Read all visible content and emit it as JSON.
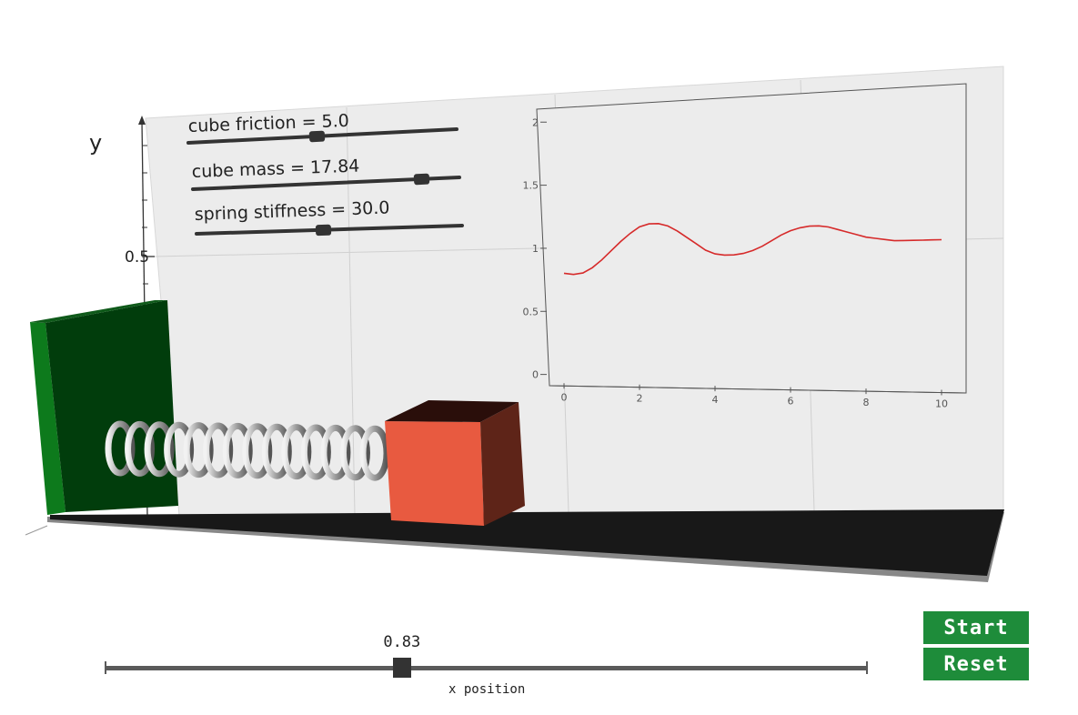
{
  "sliders": {
    "friction": {
      "label": "cube friction = 5.0",
      "value": 5.0
    },
    "mass": {
      "label": "cube mass = 17.84",
      "value": 17.84
    },
    "stiffness": {
      "label": "spring stiffness = 30.0",
      "value": 30.0
    }
  },
  "axis": {
    "y_label": "y",
    "y_tick": "0.5"
  },
  "chart_data": {
    "type": "line",
    "x": [
      0,
      0.25,
      0.5,
      0.75,
      1,
      1.25,
      1.5,
      1.75,
      2,
      2.25,
      2.5,
      2.75,
      3,
      3.25,
      3.5,
      3.75,
      4,
      4.25,
      4.5,
      4.75,
      5,
      5.25,
      5.5,
      5.75,
      6,
      6.25,
      6.5,
      6.75,
      7,
      7.25,
      7.5,
      7.75,
      8,
      8.25,
      8.5,
      8.75,
      9,
      9.25,
      9.5,
      9.75,
      10
    ],
    "y": [
      0.8,
      0.79,
      0.8,
      0.84,
      0.9,
      0.97,
      1.04,
      1.1,
      1.15,
      1.17,
      1.17,
      1.15,
      1.11,
      1.06,
      1.01,
      0.96,
      0.93,
      0.92,
      0.92,
      0.93,
      0.95,
      0.98,
      1.02,
      1.06,
      1.09,
      1.11,
      1.12,
      1.12,
      1.11,
      1.09,
      1.07,
      1.05,
      1.03,
      1.02,
      1.01,
      1.0,
      1.0,
      1.0,
      1.0,
      1.0,
      1.0
    ],
    "xlim": [
      0,
      10
    ],
    "ylim": [
      0,
      2
    ],
    "x_ticks": [
      "0",
      "2",
      "4",
      "6",
      "8",
      "10"
    ],
    "y_ticks": [
      "0",
      "0.5",
      "1",
      "1.5",
      "2"
    ],
    "line_color": "#d62a2a"
  },
  "x_position": {
    "value": "0.83",
    "fraction": 0.39,
    "label": "x position"
  },
  "buttons": {
    "start": "Start",
    "reset": "Reset"
  },
  "colors": {
    "cube_front": "#e85a40",
    "cube_side": "#5e2418",
    "cube_top": "#2a0e0a",
    "wall_face": "#013d0c",
    "wall_edge": "#0d7a1c",
    "floor": "#181818",
    "button": "#1e8c3a"
  }
}
